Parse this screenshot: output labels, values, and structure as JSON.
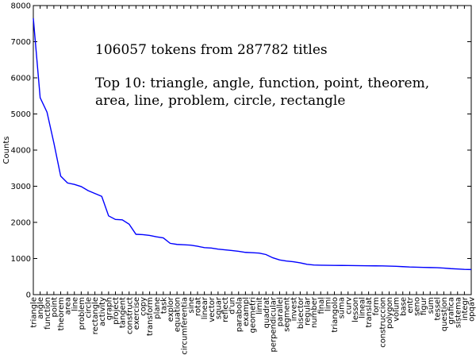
{
  "chart_data": {
    "type": "line",
    "ylabel": "Counts",
    "xlabel": "",
    "ylim": [
      0,
      8000
    ],
    "yticks": [
      0,
      1000,
      2000,
      3000,
      4000,
      5000,
      6000,
      7000,
      8000
    ],
    "grid": false,
    "line_color": "#0000ff",
    "annotations": [
      "106057 tokens from 287782 titles",
      "Top 10: triangle, angle, function, point, theorem,",
      "area, line, problem, circle, rectangle"
    ],
    "categories": [
      "triangle",
      "angle",
      "function",
      "point",
      "theorem",
      "area",
      "line",
      "problem",
      "circle",
      "rectangle",
      "activity",
      "graph",
      "project",
      "tangent",
      "construct",
      "exercise",
      "copy",
      "transform",
      "plane",
      "task",
      "explor",
      "equation",
      "circumferentia",
      "sine",
      "rotat",
      "linear",
      "vector",
      "squar",
      "reflect",
      "d'un",
      "parabola",
      "exampl",
      "geometri",
      "limit",
      "quadrat",
      "perpendicular",
      "parallel",
      "segment",
      "invest",
      "bisector",
      "regular",
      "number",
      "final",
      "limi",
      "triangolo",
      "suma",
      "curv",
      "lesson",
      "lineal",
      "translat",
      "form",
      "construccion",
      "polygon",
      "volum",
      "base",
      "entr",
      "seno",
      "figur",
      "sum",
      "tessel",
      "question",
      "grafica",
      "sistema",
      "integr",
      "opqav"
    ],
    "values": [
      7650,
      5450,
      5050,
      4200,
      3280,
      3090,
      3050,
      2990,
      2880,
      2800,
      2720,
      2180,
      2080,
      2070,
      1950,
      1670,
      1660,
      1640,
      1600,
      1570,
      1420,
      1390,
      1380,
      1370,
      1340,
      1300,
      1290,
      1260,
      1240,
      1220,
      1200,
      1170,
      1160,
      1150,
      1110,
      1020,
      960,
      930,
      910,
      880,
      840,
      820,
      815,
      812,
      810,
      808,
      806,
      804,
      800,
      798,
      797,
      795,
      790,
      785,
      775,
      765,
      760,
      755,
      750,
      745,
      735,
      720,
      710,
      700,
      695
    ]
  }
}
